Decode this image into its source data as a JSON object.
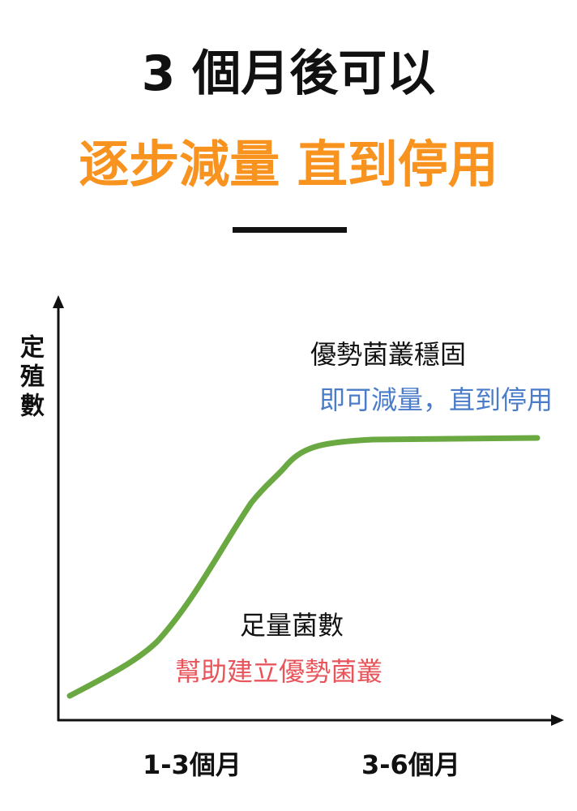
{
  "header": {
    "title": "3 個月後可以",
    "subtitle": "逐步減量 直到停用"
  },
  "axes": {
    "y_label": "定殖數",
    "x_labels": [
      "1-3個月",
      "3-6個月"
    ]
  },
  "annotations": [
    {
      "title": "優勢菌叢穩固",
      "text": "即可減量，直到停用"
    },
    {
      "title": "足量菌數",
      "text": "幫助建立優勢菌叢"
    }
  ]
}
